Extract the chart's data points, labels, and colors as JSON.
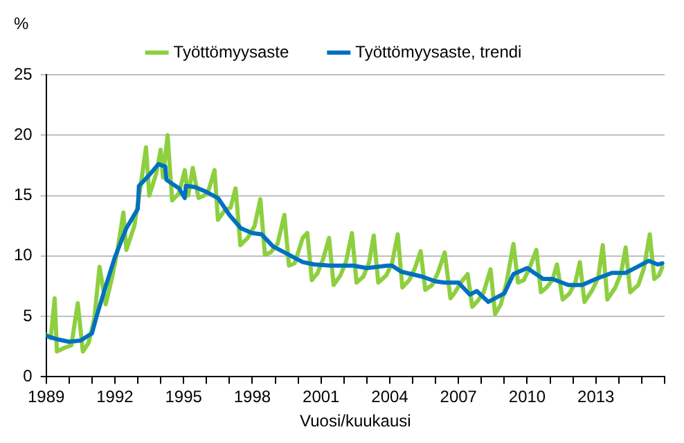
{
  "chart_data": {
    "type": "line",
    "ylabel": "%",
    "xlabel": "Vuosi/kuukausi",
    "xlim": [
      1989,
      2016
    ],
    "ylim": [
      0,
      25
    ],
    "yticks": [
      0,
      5,
      10,
      15,
      20,
      25
    ],
    "xticks": [
      1989,
      {
        "value": 1990,
        "label": null
      },
      {
        "value": 1991,
        "label": null
      },
      1992,
      {
        "value": 1993,
        "label": null
      },
      {
        "value": 1994,
        "label": null
      },
      1995,
      {
        "value": 1996,
        "label": null
      },
      {
        "value": 1997,
        "label": null
      },
      1998,
      {
        "value": 1999,
        "label": null
      },
      {
        "value": 2000,
        "label": null
      },
      2001,
      {
        "value": 2002,
        "label": null
      },
      {
        "value": 2003,
        "label": null
      },
      2004,
      {
        "value": 2005,
        "label": null
      },
      {
        "value": 2006,
        "label": null
      },
      2007,
      {
        "value": 2008,
        "label": null
      },
      {
        "value": 2009,
        "label": null
      },
      2010,
      {
        "value": 2011,
        "label": null
      },
      {
        "value": 2012,
        "label": null
      },
      2013,
      {
        "value": 2014,
        "label": null
      },
      {
        "value": 2015,
        "label": null
      },
      {
        "value": 2016,
        "label": null
      }
    ],
    "grid": "y",
    "legend": "top",
    "marker": "none",
    "line_style": "solid",
    "series": [
      {
        "name": "Työttömyysaste",
        "color": "#8dcf3f",
        "x": [
          1989.0,
          1989.2,
          1989.37,
          1989.47,
          1989.8,
          1990.1,
          1990.38,
          1990.6,
          1990.85,
          1991.1,
          1991.33,
          1991.6,
          1991.85,
          1992.1,
          1992.37,
          1992.5,
          1992.85,
          1993.1,
          1993.36,
          1993.5,
          1993.8,
          1994.0,
          1994.1,
          1994.3,
          1994.5,
          1994.8,
          1995.05,
          1995.2,
          1995.4,
          1995.65,
          1995.9,
          1996.1,
          1996.35,
          1996.5,
          1996.8,
          1997.05,
          1997.27,
          1997.48,
          1997.8,
          1998.1,
          1998.35,
          1998.55,
          1998.8,
          1999.1,
          1999.4,
          1999.6,
          1999.85,
          2000.2,
          2000.4,
          2000.6,
          2000.85,
          2001.1,
          2001.35,
          2001.55,
          2001.85,
          2002.1,
          2002.35,
          2002.55,
          2002.85,
          2003.1,
          2003.3,
          2003.5,
          2003.85,
          2004.1,
          2004.35,
          2004.55,
          2004.85,
          2005.1,
          2005.35,
          2005.55,
          2005.85,
          2006.1,
          2006.4,
          2006.65,
          2006.85,
          2007.1,
          2007.4,
          2007.6,
          2007.85,
          2008.1,
          2008.4,
          2008.6,
          2008.85,
          2009.1,
          2009.4,
          2009.6,
          2009.85,
          2010.1,
          2010.4,
          2010.6,
          2010.85,
          2011.1,
          2011.3,
          2011.55,
          2011.85,
          2012.1,
          2012.3,
          2012.5,
          2012.85,
          2013.1,
          2013.3,
          2013.5,
          2013.85,
          2014.1,
          2014.3,
          2014.5,
          2014.85,
          2015.1,
          2015.35,
          2015.55,
          2015.75,
          2015.9
        ],
        "values": [
          3.5,
          3.2,
          6.5,
          2.1,
          2.4,
          2.6,
          6.1,
          2.1,
          2.8,
          4.8,
          9.1,
          6.0,
          8.0,
          10.3,
          13.6,
          10.5,
          12.5,
          15.5,
          19.0,
          15.0,
          16.8,
          18.8,
          16.5,
          20.0,
          14.6,
          15.2,
          17.1,
          15.0,
          17.3,
          14.8,
          15.0,
          15.5,
          17.1,
          13.0,
          13.8,
          14.0,
          15.6,
          10.9,
          11.5,
          12.5,
          14.7,
          10.1,
          10.3,
          11.0,
          13.4,
          9.2,
          9.4,
          11.5,
          11.9,
          8.0,
          8.6,
          9.8,
          11.5,
          7.6,
          8.4,
          9.6,
          11.9,
          7.8,
          8.3,
          9.5,
          11.7,
          7.8,
          8.4,
          9.4,
          11.8,
          7.4,
          8.0,
          9.0,
          10.4,
          7.2,
          7.6,
          8.6,
          10.3,
          6.5,
          7.0,
          7.8,
          8.5,
          5.8,
          6.3,
          7.0,
          8.9,
          5.2,
          6.0,
          7.8,
          11.0,
          7.8,
          8.0,
          9.0,
          10.5,
          7.0,
          7.4,
          8.0,
          9.3,
          6.4,
          6.9,
          7.8,
          9.5,
          6.2,
          7.2,
          8.2,
          10.9,
          6.4,
          7.4,
          8.6,
          10.7,
          7.0,
          7.6,
          9.0,
          11.8,
          8.1,
          8.4,
          9.1
        ]
      },
      {
        "name": "Työttömyysaste, trendi",
        "color": "#0070c0",
        "x": [
          1989.0,
          1989.5,
          1990.0,
          1990.5,
          1991.0,
          1991.2,
          1991.6,
          1992.0,
          1992.5,
          1993.0,
          1993.05,
          1993.5,
          1993.9,
          1994.2,
          1994.25,
          1994.8,
          1995.05,
          1995.1,
          1995.5,
          1996.0,
          1996.5,
          1997.0,
          1997.5,
          1998.0,
          1998.4,
          1998.9,
          1999.6,
          2000.2,
          2000.7,
          2001.4,
          2002.4,
          2003.0,
          2003.9,
          2004.1,
          2004.5,
          2005.4,
          2006.0,
          2006.4,
          2007.0,
          2007.5,
          2007.8,
          2008.3,
          2009.0,
          2009.4,
          2010.0,
          2010.7,
          2011.1,
          2011.8,
          2012.4,
          2013.0,
          2013.7,
          2014.3,
          2014.8,
          2015.3,
          2015.7,
          2015.9
        ],
        "values": [
          3.4,
          3.1,
          2.9,
          3.0,
          3.6,
          5.0,
          7.5,
          9.9,
          12.3,
          13.9,
          15.8,
          16.7,
          17.6,
          17.4,
          16.3,
          15.6,
          14.8,
          15.8,
          15.7,
          15.3,
          14.8,
          13.4,
          12.3,
          11.9,
          11.8,
          10.8,
          10.1,
          9.5,
          9.3,
          9.2,
          9.2,
          9.0,
          9.2,
          9.2,
          8.7,
          8.3,
          7.9,
          7.8,
          7.8,
          6.8,
          7.1,
          6.2,
          6.9,
          8.5,
          9.0,
          8.1,
          8.1,
          7.6,
          7.6,
          8.1,
          8.6,
          8.6,
          9.1,
          9.6,
          9.3,
          9.4
        ]
      }
    ]
  }
}
